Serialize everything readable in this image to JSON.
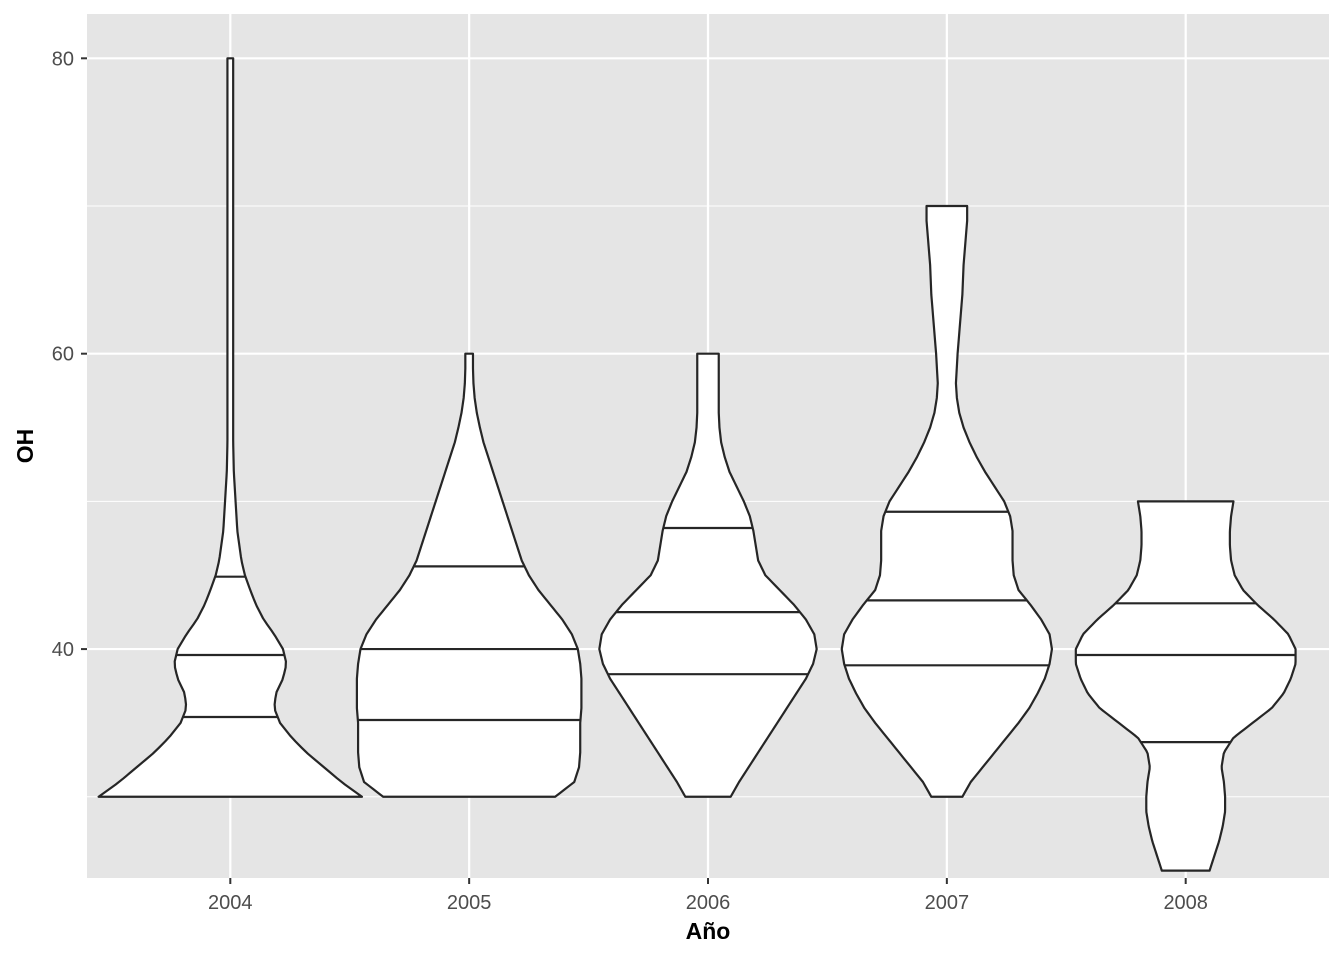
{
  "chart_data": {
    "type": "violin",
    "xlabel": "Año",
    "ylabel": "OH",
    "categories": [
      "2004",
      "2005",
      "2006",
      "2007",
      "2008"
    ],
    "yticks": [
      40,
      60,
      80
    ],
    "ylim": [
      24.5,
      83
    ],
    "grid": true,
    "colors": {
      "panel": "#e5e5e5",
      "grid": "#ffffff",
      "fill": "#ffffff",
      "outline": "#262626"
    },
    "violins": [
      {
        "category": "2004",
        "quantiles": [
          35.4,
          39.6,
          44.9
        ],
        "profile": [
          [
            30,
            0.47
          ],
          [
            32,
            0.35
          ],
          [
            34,
            0.25
          ],
          [
            35.4,
            0.2
          ],
          [
            37,
            0.195
          ],
          [
            38.5,
            0.21
          ],
          [
            40,
            0.175
          ],
          [
            42,
            0.1
          ],
          [
            44,
            0.05
          ],
          [
            46,
            0.025
          ],
          [
            48,
            0.0
          ],
          [
            50,
            -0.03
          ],
          [
            52,
            -0.05
          ],
          [
            54,
            -0.07
          ],
          [
            56,
            -0.08
          ],
          [
            58,
            -0.09
          ],
          [
            60,
            -0.1
          ],
          [
            62,
            -0.09
          ],
          [
            64,
            -0.08
          ],
          [
            66,
            -0.07
          ],
          [
            68,
            -0.06
          ],
          [
            70,
            -0.05
          ],
          [
            72,
            -0.04
          ],
          [
            74,
            -0.035
          ],
          [
            76,
            -0.03
          ],
          [
            78,
            -0.03
          ],
          [
            80,
            -0.03
          ]
        ],
        "profile_units": "half-width in category units; negative values below the quantile-free tail are mirrored as thin widths",
        "ymin": 30,
        "ymax": 80
      },
      {
        "category": "2005",
        "quantiles": [
          35.2,
          40.0,
          45.6
        ],
        "ymin": 30,
        "ymax": 60
      },
      {
        "category": "2006",
        "quantiles": [
          38.3,
          42.5,
          48.2
        ],
        "ymin": 30,
        "ymax": 60
      },
      {
        "category": "2007",
        "quantiles": [
          38.9,
          43.3,
          49.3
        ],
        "ymin": 30,
        "ymax": 70
      },
      {
        "category": "2008",
        "quantiles": [
          33.7,
          39.6,
          43.1
        ],
        "ymin": 25,
        "ymax": 50
      }
    ]
  }
}
